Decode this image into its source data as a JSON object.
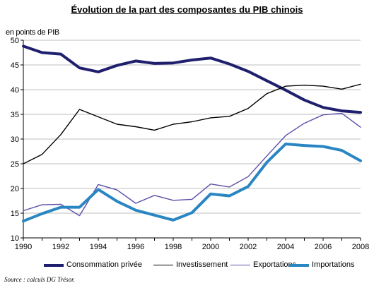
{
  "chart_data": {
    "type": "line",
    "title": "Évolution de la part des composantes du PIB chinois",
    "ylabel": "en points de PIB",
    "xlabel": "",
    "source": "Source : calculs DG Trésor.",
    "x": [
      1990,
      1991,
      1992,
      1993,
      1994,
      1995,
      1996,
      1997,
      1998,
      1999,
      2000,
      2001,
      2002,
      2003,
      2004,
      2005,
      2006,
      2007,
      2008
    ],
    "xticks": [
      "1990",
      "1992",
      "1994",
      "1996",
      "1998",
      "2000",
      "2002",
      "2004",
      "2006",
      "2008"
    ],
    "xlim": [
      1990,
      2008
    ],
    "ylim": [
      10,
      50
    ],
    "yticks": [
      "10",
      "15",
      "20",
      "25",
      "30",
      "35",
      "40",
      "45",
      "50"
    ],
    "grid": "horizontal",
    "legend_position": "bottom",
    "series": [
      {
        "name": "Consommation privée",
        "color": "#1f1f6e",
        "style": "thick",
        "values": [
          48.8,
          47.5,
          47.2,
          44.4,
          43.6,
          44.9,
          45.8,
          45.3,
          45.4,
          46.0,
          46.4,
          45.2,
          43.7,
          41.8,
          39.9,
          37.9,
          36.4,
          35.7,
          35.4
        ]
      },
      {
        "name": "Investissement",
        "color": "#000000",
        "style": "thin",
        "values": [
          25.0,
          26.9,
          30.9,
          36.0,
          34.5,
          33.0,
          32.5,
          31.8,
          33.0,
          33.5,
          34.3,
          34.6,
          36.2,
          39.2,
          40.7,
          40.9,
          40.7,
          40.1,
          41.1
        ]
      },
      {
        "name": "Exportations",
        "color": "#5b4fa8",
        "style": "thin",
        "values": [
          15.5,
          16.7,
          16.8,
          14.5,
          20.8,
          19.7,
          17.0,
          18.6,
          17.6,
          17.8,
          20.9,
          20.3,
          22.4,
          26.6,
          30.7,
          33.2,
          34.9,
          35.2,
          32.4
        ]
      },
      {
        "name": "Importations",
        "color": "#2a86c3",
        "style": "thick",
        "values": [
          13.4,
          14.9,
          16.2,
          16.2,
          19.8,
          17.4,
          15.6,
          14.6,
          13.6,
          15.1,
          18.9,
          18.5,
          20.4,
          25.3,
          29.0,
          28.7,
          28.5,
          27.7,
          25.6
        ]
      }
    ]
  }
}
